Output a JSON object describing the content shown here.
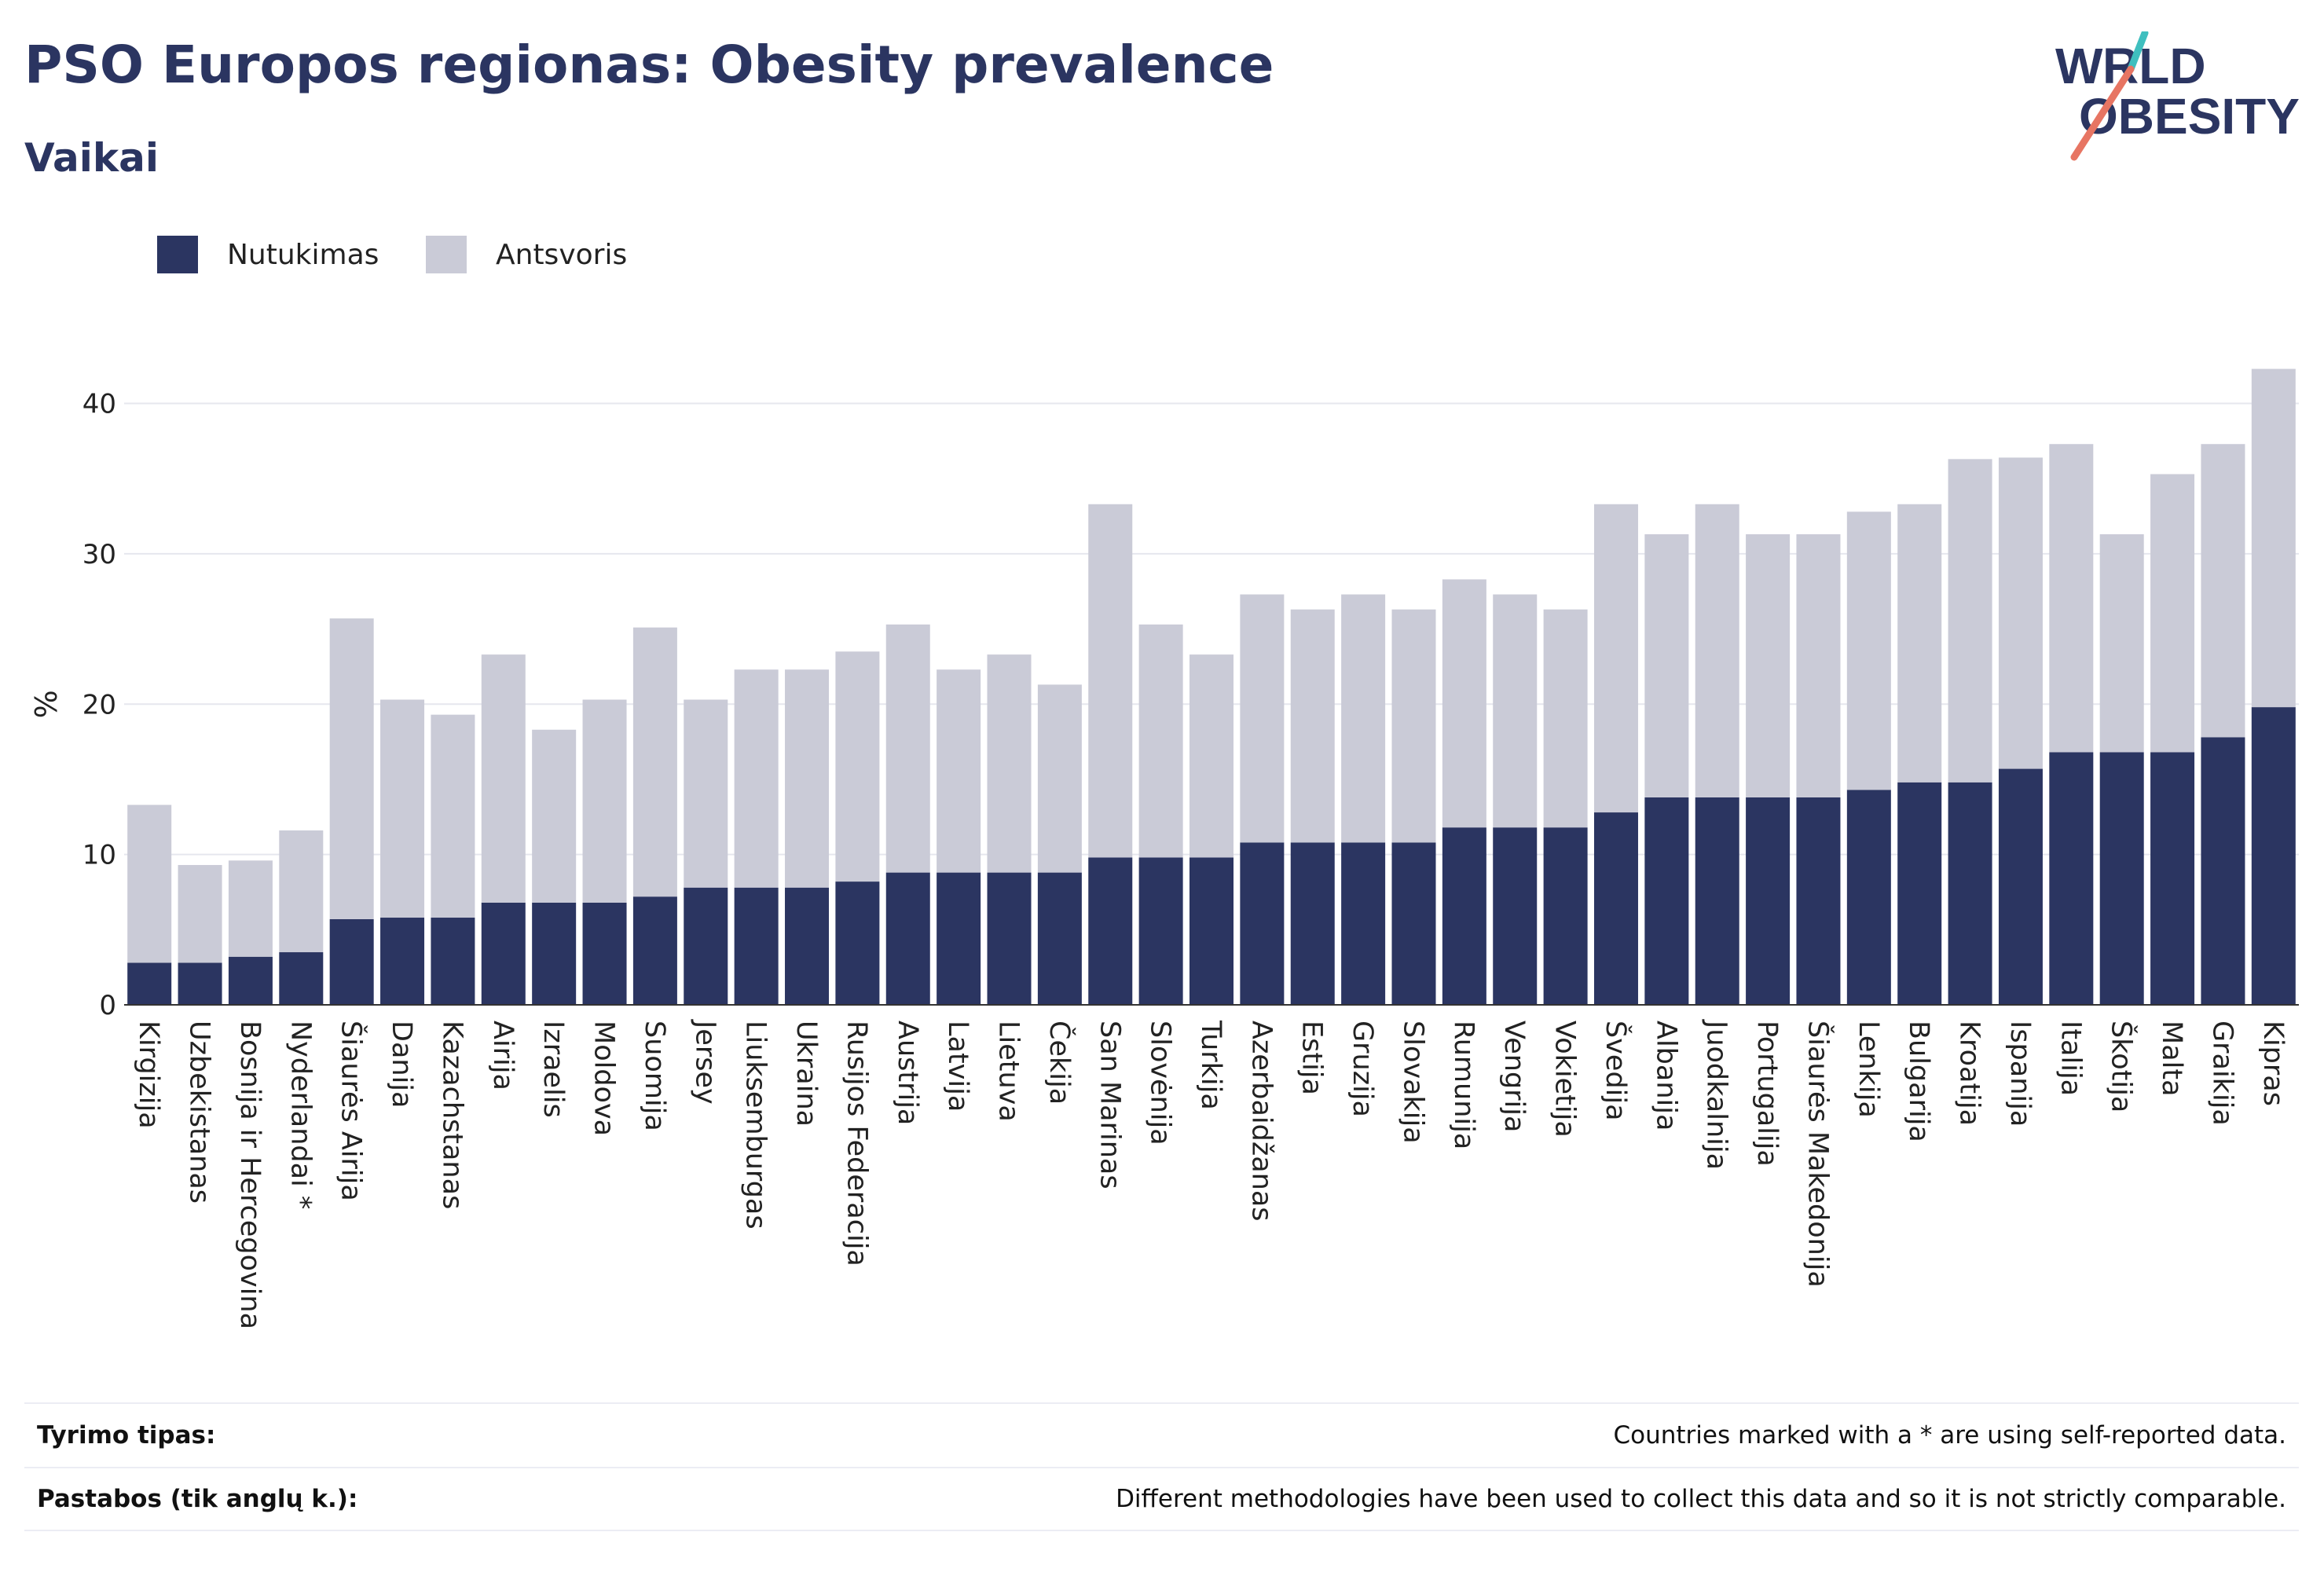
{
  "header": {
    "title": "PSO Europos regionas: Obesity prevalence",
    "subtitle": "Vaikai",
    "logo_text": [
      "WORLD",
      "OBESITY"
    ]
  },
  "legend": [
    {
      "label": "Nutukimas",
      "color": "#2b3561"
    },
    {
      "label": "Antsvoris",
      "color": "#cacbd7"
    }
  ],
  "chart_data": {
    "type": "bar",
    "stacked": true,
    "ylabel": "%",
    "xlabel": "",
    "ylim": [
      0,
      44
    ],
    "yticks": [
      0,
      10,
      20,
      30,
      40
    ],
    "grid": true,
    "legend_position": "top-left",
    "categories": [
      "Kirgizija",
      "Uzbekistanas",
      "Bosnija ir Hercegovina",
      "Nyderlandai *",
      "Šiaurės Airija",
      "Danija",
      "Kazachstanas",
      "Airija",
      "Izraelis",
      "Moldova",
      "Suomija",
      "Jersey",
      "Liuksemburgas",
      "Ukraina",
      "Rusijos Federacija",
      "Austrija",
      "Latvija",
      "Lietuva",
      "Čekija",
      "San Marinas",
      "Slovėnija",
      "Turkija",
      "Azerbaidžanas",
      "Estija",
      "Gruzija",
      "Slovakija",
      "Rumunija",
      "Vengrija",
      "Vokietija",
      "Švedija",
      "Albanija",
      "Juodkalnija",
      "Portugalija",
      "Šiaurės Makedonija",
      "Lenkija",
      "Bulgarija",
      "Kroatija",
      "Ispanija",
      "Italija",
      "Škotija",
      "Malta",
      "Graikija",
      "Kipras"
    ],
    "series": [
      {
        "name": "Nutukimas",
        "color": "#2b3561",
        "values": [
          2.8,
          2.8,
          3.2,
          3.5,
          5.7,
          5.8,
          5.8,
          6.8,
          6.8,
          6.8,
          7.2,
          7.8,
          7.8,
          7.8,
          8.2,
          8.8,
          8.8,
          8.8,
          8.8,
          9.8,
          9.8,
          9.8,
          10.8,
          10.8,
          10.8,
          10.8,
          11.8,
          11.8,
          11.8,
          12.8,
          13.8,
          13.8,
          13.8,
          13.8,
          14.3,
          14.8,
          14.8,
          15.7,
          16.8,
          16.8,
          16.8,
          17.8,
          19.8
        ]
      },
      {
        "name": "Antsvoris",
        "color": "#cacbd7",
        "values": [
          10.5,
          6.5,
          6.4,
          8.1,
          20.0,
          14.5,
          13.5,
          16.5,
          11.5,
          13.5,
          17.9,
          12.5,
          14.5,
          14.5,
          15.3,
          16.5,
          13.5,
          14.5,
          12.5,
          23.5,
          15.5,
          13.5,
          16.5,
          15.5,
          16.5,
          15.5,
          16.5,
          15.5,
          14.5,
          20.5,
          17.5,
          19.5,
          17.5,
          17.5,
          18.5,
          18.5,
          21.5,
          20.7,
          20.5,
          14.5,
          18.5,
          19.5,
          22.5
        ]
      }
    ]
  },
  "footer": [
    {
      "key": "Tyrimo tipas:",
      "value": "Countries marked with a * are using self-reported data."
    },
    {
      "key": "Pastabos (tik anglų k.):",
      "value": "Different methodologies have been used to collect this data and so it is not strictly comparable."
    }
  ]
}
